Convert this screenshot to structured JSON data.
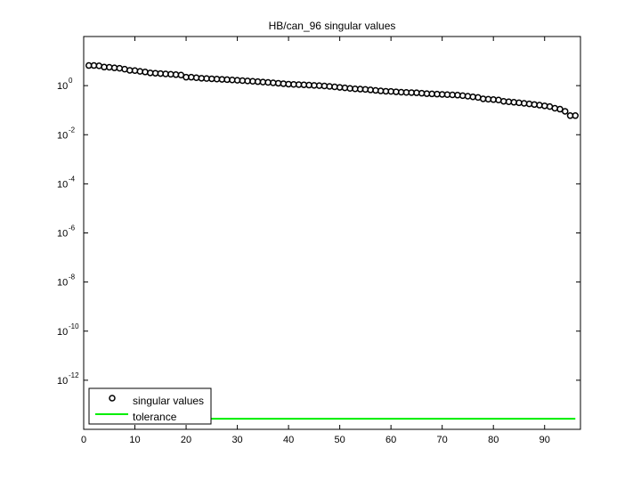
{
  "chart_data": {
    "type": "scatter",
    "title": "HB/can_96 singular values",
    "xlabel": "",
    "ylabel": "",
    "xlim": [
      0,
      97
    ],
    "ylim_log10": [
      -14,
      2
    ],
    "yscale": "log",
    "grid": false,
    "legend_position": "bottom-left",
    "x_ticks": [
      0,
      10,
      20,
      30,
      40,
      50,
      60,
      70,
      80,
      90
    ],
    "y_ticks": [
      {
        "exp": 0,
        "base": "10",
        "sup": "0"
      },
      {
        "exp": -2,
        "base": "10",
        "sup": "-2"
      },
      {
        "exp": -4,
        "base": "10",
        "sup": "-4"
      },
      {
        "exp": -6,
        "base": "10",
        "sup": "-6"
      },
      {
        "exp": -8,
        "base": "10",
        "sup": "-8"
      },
      {
        "exp": -10,
        "base": "10",
        "sup": "-10"
      },
      {
        "exp": -12,
        "base": "10",
        "sup": "-12"
      }
    ],
    "series": [
      {
        "name": "singular values",
        "marker": "circle",
        "color": "#000000",
        "x_start": 1,
        "values": [
          6.6,
          6.6,
          6.4,
          5.7,
          5.6,
          5.3,
          5.1,
          4.7,
          4.2,
          4.1,
          3.8,
          3.6,
          3.3,
          3.2,
          3.1,
          3.0,
          2.9,
          2.8,
          2.7,
          2.2,
          2.2,
          2.1,
          2.0,
          1.95,
          1.9,
          1.85,
          1.8,
          1.75,
          1.7,
          1.65,
          1.6,
          1.55,
          1.5,
          1.45,
          1.4,
          1.35,
          1.3,
          1.25,
          1.2,
          1.15,
          1.12,
          1.1,
          1.08,
          1.05,
          1.02,
          1.0,
          0.97,
          0.93,
          0.89,
          0.85,
          0.81,
          0.77,
          0.74,
          0.72,
          0.7,
          0.67,
          0.64,
          0.61,
          0.59,
          0.58,
          0.56,
          0.54,
          0.53,
          0.52,
          0.51,
          0.49,
          0.47,
          0.46,
          0.45,
          0.44,
          0.43,
          0.42,
          0.41,
          0.39,
          0.37,
          0.35,
          0.33,
          0.29,
          0.28,
          0.27,
          0.26,
          0.23,
          0.22,
          0.21,
          0.2,
          0.19,
          0.18,
          0.17,
          0.16,
          0.15,
          0.14,
          0.12,
          0.11,
          0.09,
          0.06,
          0.06
        ]
      },
      {
        "name": "tolerance",
        "marker": "line",
        "color": "#00ee00",
        "x": [
          1,
          96
        ],
        "y": [
          2.7e-14,
          2.7e-14
        ]
      }
    ]
  }
}
